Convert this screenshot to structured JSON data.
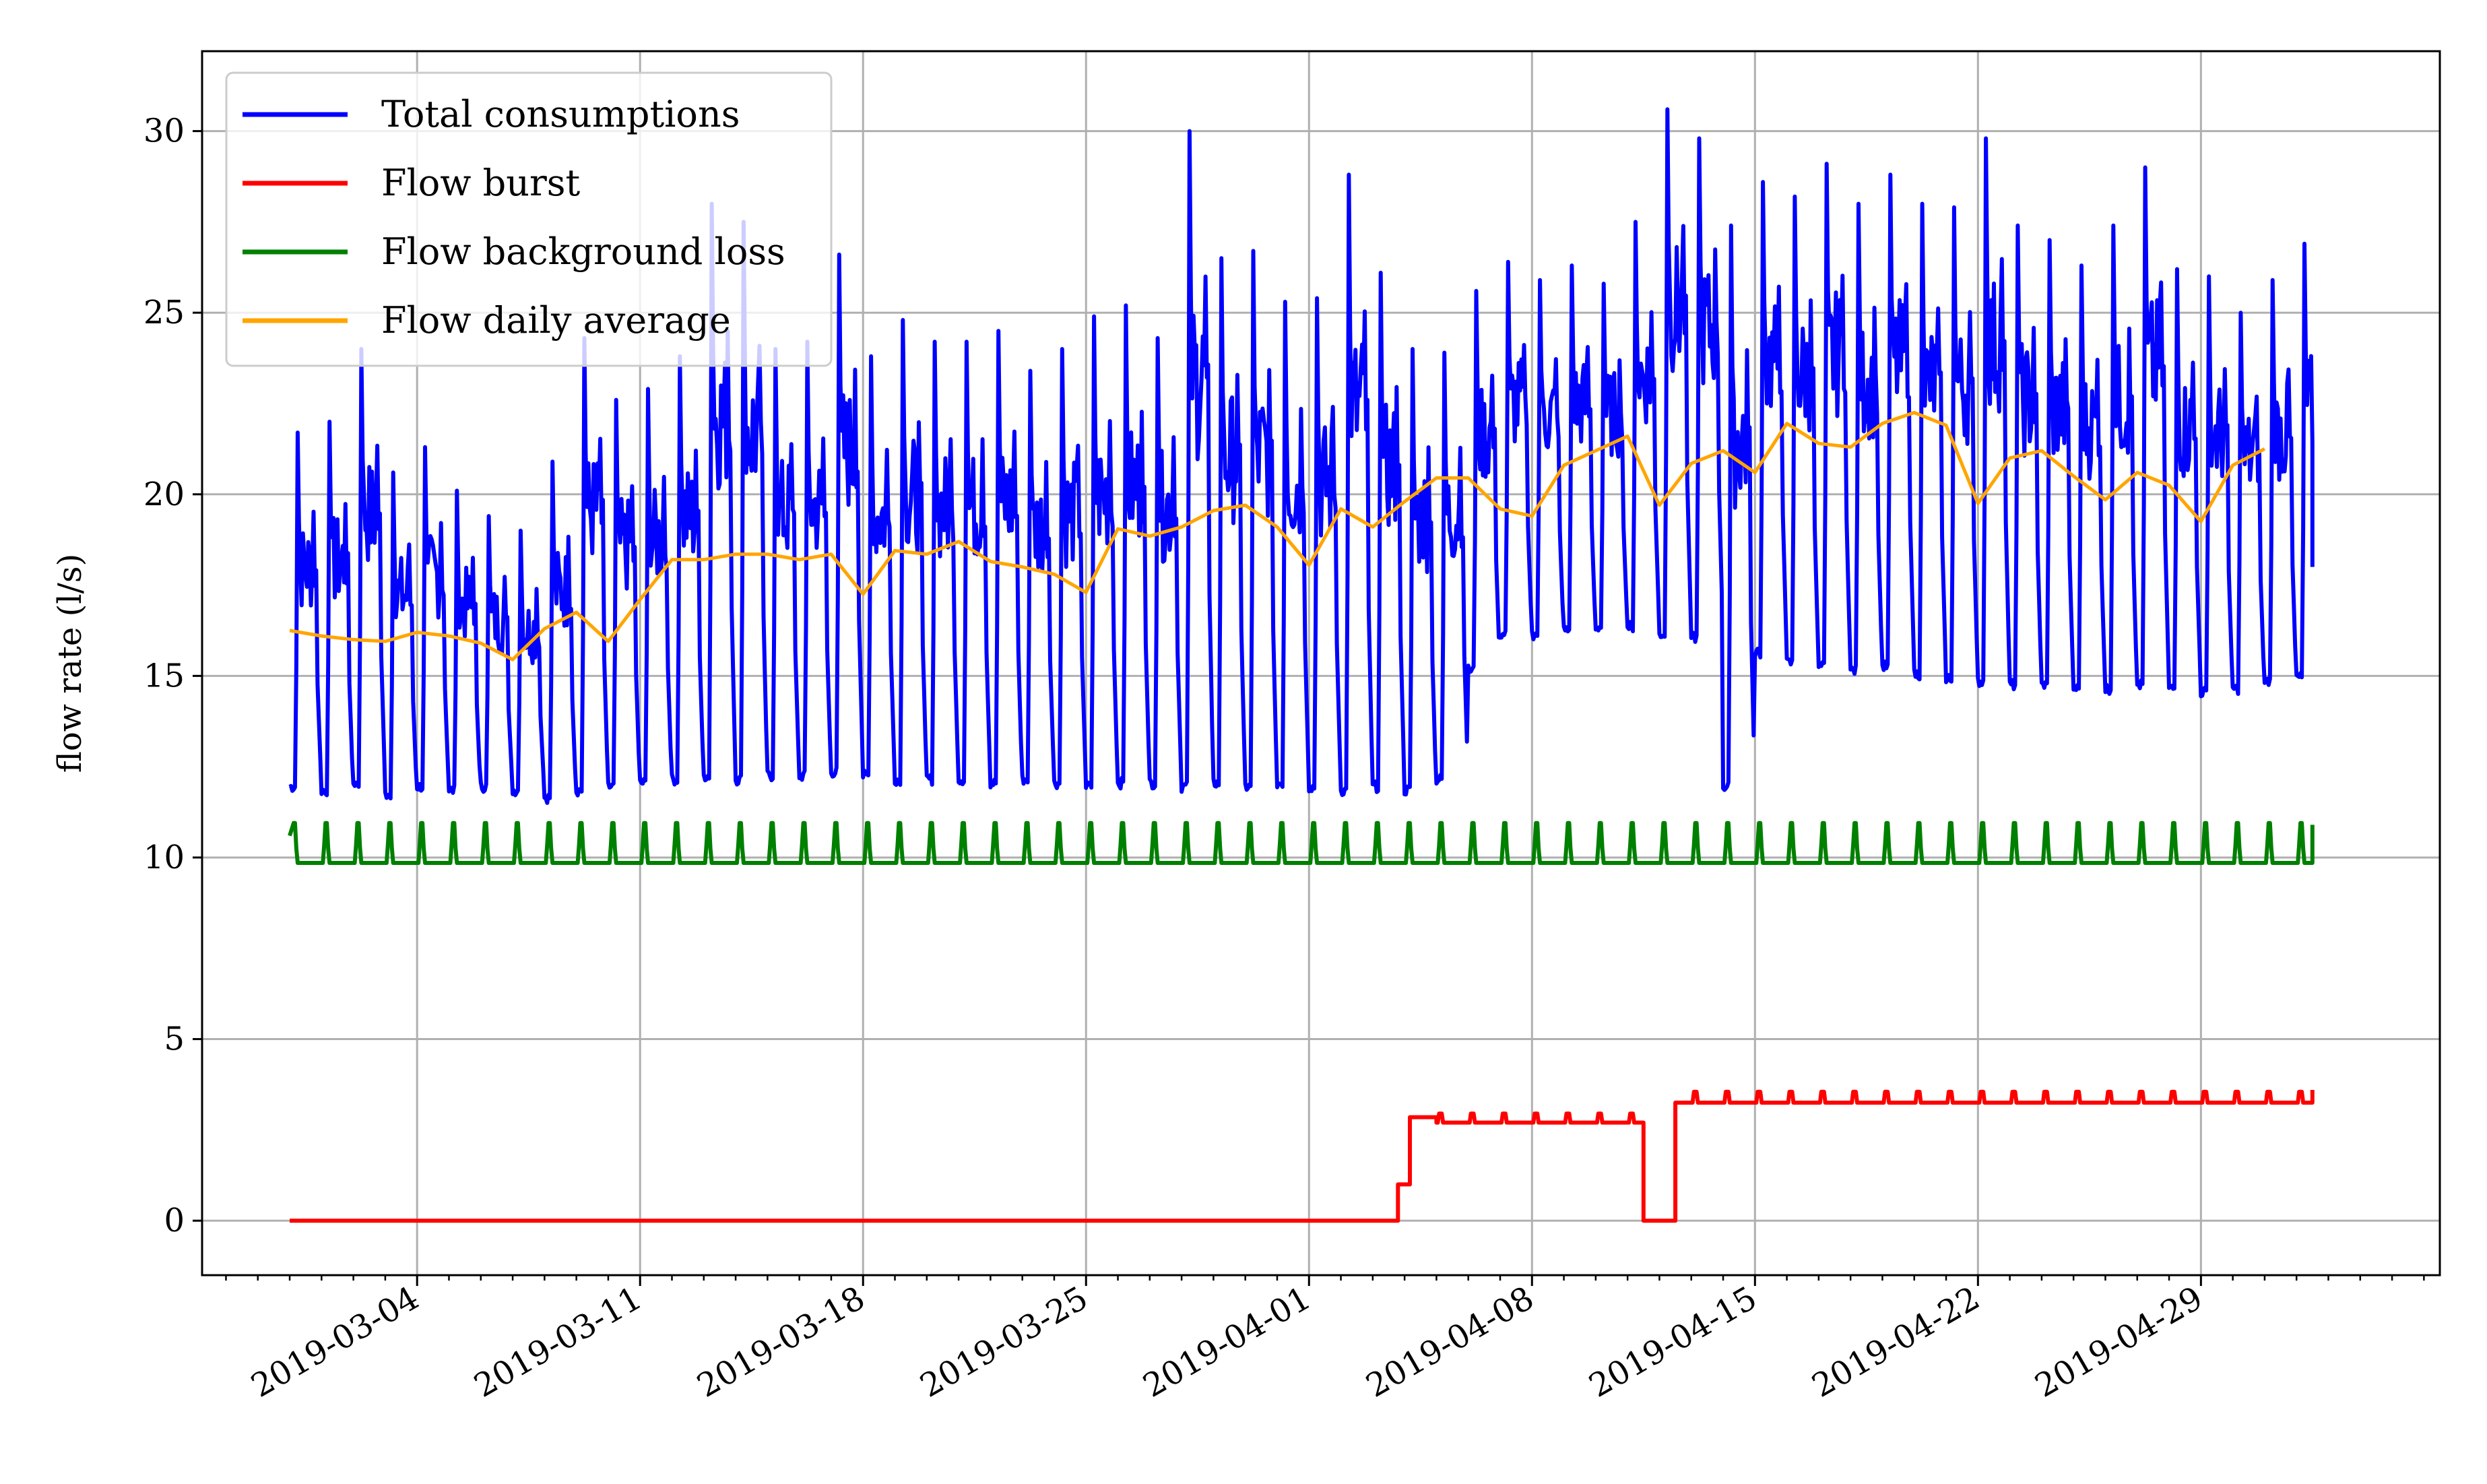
{
  "chart_data": {
    "type": "line",
    "title": "",
    "xlabel": "",
    "ylabel": "flow rate (l/s)",
    "x_type": "date",
    "xlim": [
      "2019-02-25T06:00",
      "2019-05-06T12:00"
    ],
    "ylim": [
      -1.5,
      32.2
    ],
    "x_ticks": [
      "2019-03-04",
      "2019-03-11",
      "2019-03-18",
      "2019-03-25",
      "2019-04-01",
      "2019-04-08",
      "2019-04-15",
      "2019-04-22",
      "2019-04-29"
    ],
    "y_ticks": [
      0,
      5,
      10,
      15,
      20,
      25,
      30
    ],
    "grid": true,
    "legend": {
      "position": "top-left"
    },
    "series": [
      {
        "name": "Total consumptions",
        "color": "#0000ff",
        "period": "hourly, daily cycle",
        "start": "2019-02-28",
        "end": "2019-05-02T12:00",
        "daily_min": [
          11.8,
          11.7,
          11.9,
          11.6,
          11.8,
          11.7,
          11.8,
          11.7,
          11.5,
          11.7,
          11.8,
          11.9,
          12.0,
          12.1,
          12.0,
          12.1,
          12.1,
          12.2,
          12.1,
          12.0,
          12.0,
          12.0,
          11.9,
          12.0,
          11.9,
          11.8,
          11.9,
          11.9,
          11.8,
          11.9,
          11.8,
          11.9,
          11.8,
          11.7,
          11.8,
          11.7,
          12.0,
          15.0,
          16.0,
          16.0,
          16.1,
          16.2,
          16.2,
          16.0,
          15.9,
          11.8,
          15.5,
          15.2,
          15.1,
          15.0,
          15.1,
          14.9,
          14.8,
          14.7,
          14.6,
          14.6,
          14.5,
          14.5,
          14.6,
          14.5,
          14.4,
          14.5,
          14.7,
          14.8,
          15.0
        ],
        "daily_max": [
          21.7,
          22.0,
          24.0,
          20.6,
          21.3,
          20.1,
          19.4,
          19.0,
          20.9,
          24.3,
          22.6,
          22.9,
          23.8,
          28.0,
          27.5,
          24.0,
          24.2,
          26.6,
          23.8,
          24.8,
          24.2,
          24.2,
          24.5,
          23.4,
          24.0,
          24.9,
          25.2,
          24.3,
          30.0,
          26.5,
          26.7,
          25.3,
          25.4,
          28.8,
          26.1,
          24.0,
          23.9,
          25.6,
          26.4,
          25.9,
          26.3,
          25.8,
          27.5,
          30.6,
          29.8,
          27.4,
          28.6,
          28.2,
          29.1,
          28.0,
          28.8,
          28.0,
          27.9,
          29.8,
          27.4,
          27.0,
          26.3,
          27.4,
          29.0,
          26.2,
          26.0,
          25.0,
          25.9,
          26.9,
          23.4
        ],
        "final_value": 18.0
      },
      {
        "name": "Flow burst",
        "color": "#ff0000",
        "segments": [
          {
            "from": "2019-02-28",
            "to": "2019-04-03T19:00",
            "value": 0.0
          },
          {
            "from": "2019-04-03T19:00",
            "to": "2019-04-04T04:00",
            "value": 1.0
          },
          {
            "from": "2019-04-04T04:00",
            "to": "2019-04-05T00:00",
            "value": 2.85
          },
          {
            "from": "2019-04-05T00:00",
            "to": "2019-04-11T12:00",
            "value": 2.7,
            "daily_bump": 0.25
          },
          {
            "from": "2019-04-11T12:00",
            "to": "2019-04-12T12:00",
            "value": 0.0
          },
          {
            "from": "2019-04-12T12:00",
            "to": "2019-05-02T12:00",
            "value": 3.25,
            "daily_bump": 0.3
          }
        ],
        "final_value": 3.6
      },
      {
        "name": "Flow background loss",
        "color": "#008000",
        "base": 9.85,
        "peak": 10.95,
        "start_value": 10.6,
        "final_value": 10.9,
        "period": "daily"
      },
      {
        "name": "Flow daily average",
        "color": "#ffa500",
        "x_start": "2019-02-28",
        "x_step_days": 1,
        "values": [
          16.25,
          16.1,
          16.0,
          15.95,
          16.2,
          16.1,
          15.9,
          15.45,
          16.3,
          16.75,
          15.95,
          17.1,
          18.2,
          18.2,
          18.35,
          18.35,
          18.2,
          18.35,
          17.25,
          18.45,
          18.35,
          18.7,
          18.15,
          18.0,
          17.8,
          17.3,
          19.05,
          18.85,
          19.1,
          19.55,
          19.7,
          19.1,
          18.05,
          19.6,
          19.1,
          19.8,
          20.45,
          20.45,
          19.6,
          19.4,
          20.8,
          21.2,
          21.6,
          19.7,
          20.85,
          21.2,
          20.6,
          21.95,
          21.4,
          21.3,
          21.95,
          22.25,
          21.9,
          19.75,
          21.0,
          21.2,
          20.5,
          19.85,
          20.6,
          20.25,
          19.25,
          20.8,
          21.25
        ]
      }
    ]
  }
}
